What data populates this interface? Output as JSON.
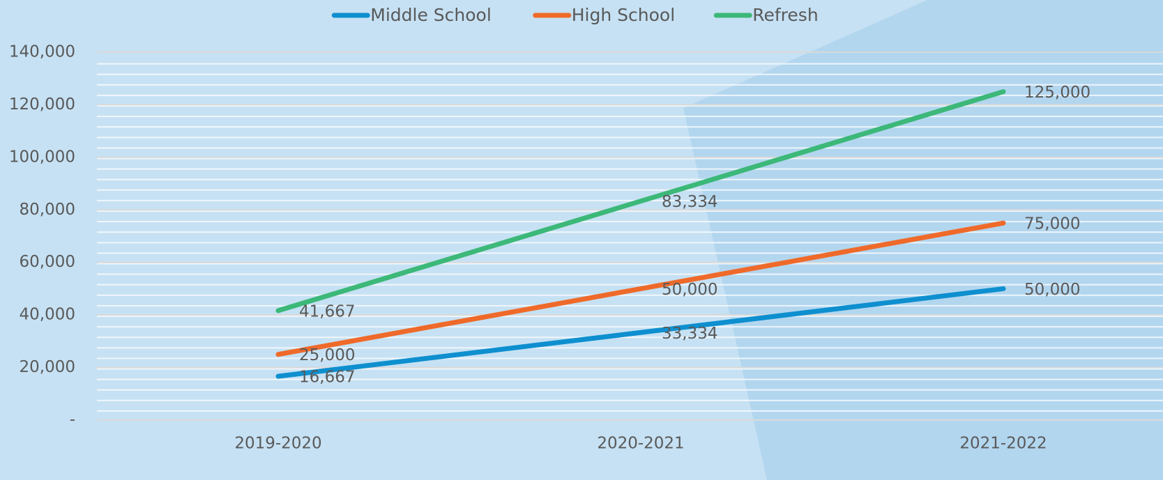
{
  "chart_data": {
    "type": "line",
    "categories": [
      "2019-2020",
      "2020-2021",
      "2021-2022"
    ],
    "series": [
      {
        "name": "Middle School",
        "color": "#0e8fcf",
        "values": [
          16667,
          33334,
          50000
        ],
        "value_labels": [
          "16,667",
          "33,334",
          "50,000"
        ]
      },
      {
        "name": "High School",
        "color": "#ef6a2a",
        "values": [
          25000,
          50000,
          75000
        ],
        "value_labels": [
          "25,000",
          "50,000",
          "75,000"
        ]
      },
      {
        "name": "Refresh",
        "color": "#3cb878",
        "values": [
          41667,
          83334,
          125000
        ],
        "value_labels": [
          "41,667",
          "83,334",
          "125,000"
        ]
      }
    ],
    "ylim": [
      0,
      140000
    ],
    "yticks": [
      {
        "value": 0,
        "label": "-"
      },
      {
        "value": 20000,
        "label": "20,000"
      },
      {
        "value": 40000,
        "label": "40,000"
      },
      {
        "value": 60000,
        "label": "60,000"
      },
      {
        "value": 80000,
        "label": "80,000"
      },
      {
        "value": 100000,
        "label": "100,000"
      },
      {
        "value": 120000,
        "label": "120,000"
      },
      {
        "value": 140000,
        "label": "140,000"
      }
    ],
    "grid": true,
    "legend": "top"
  }
}
